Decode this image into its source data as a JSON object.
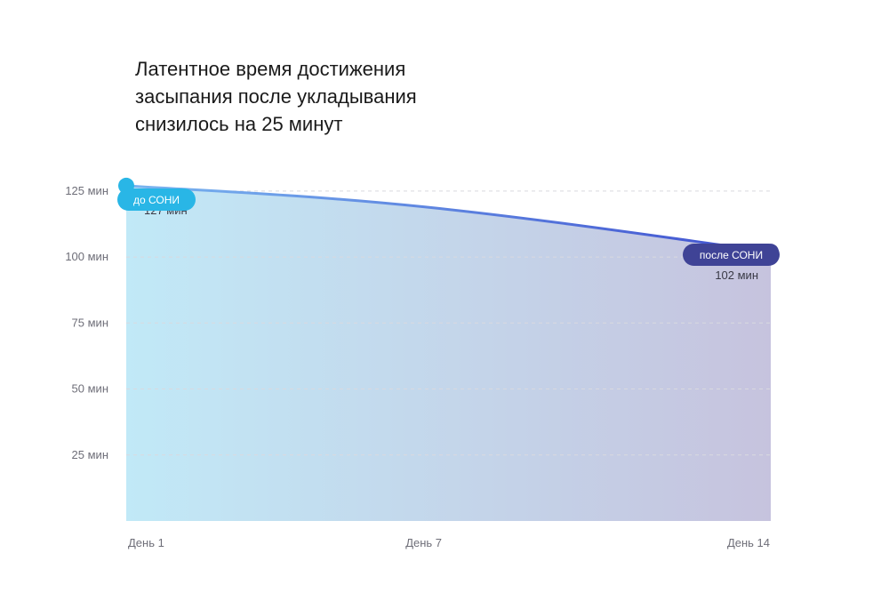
{
  "chart_data": {
    "type": "area",
    "title": "Латентное время достижения\nзасыпания после укладывания\nснизилось на 25 минут",
    "x_ticks": [
      "День 1",
      "День 7",
      "День 14"
    ],
    "x": [
      1,
      7,
      14
    ],
    "values": [
      127,
      119,
      102
    ],
    "y_ticks": [
      "25 мин",
      "50 мин",
      "75 мин",
      "100 мин",
      "125 мин"
    ],
    "y_tick_values": [
      25,
      50,
      75,
      100,
      125
    ],
    "ylim": [
      0,
      130
    ],
    "grid": true,
    "annotations": {
      "start_badge": "до СОНИ",
      "end_badge": "после СОНИ",
      "start_value_label": "127 мин",
      "end_value_label": "102 мин"
    },
    "colors": {
      "start": "#29b6e6",
      "end": "#3f4396",
      "line_start": "#7ab6f0",
      "line_end": "#3f4fcf",
      "fill_start": "#c1e9f7",
      "fill_end": "#c6c3de",
      "grid": "#d9d9df",
      "tick_text": "#6e6e78"
    }
  }
}
